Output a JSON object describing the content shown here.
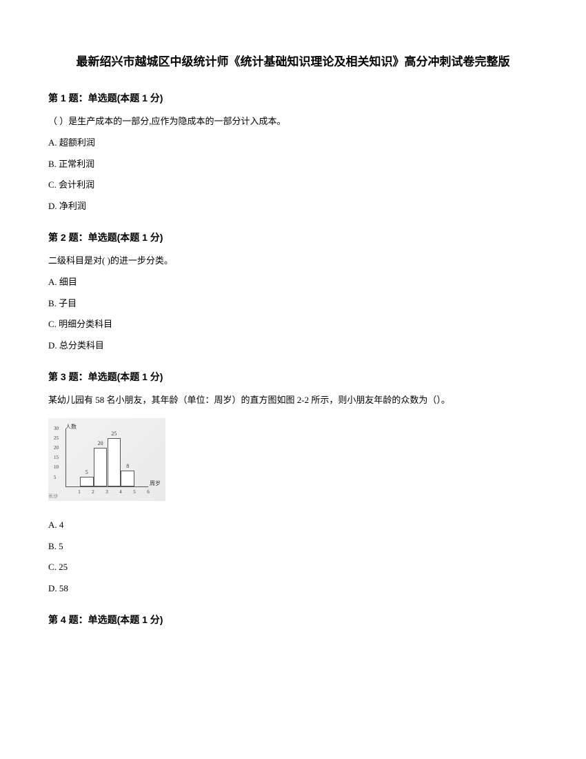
{
  "title": "最新绍兴市越城区中级统计师《统计基础知识理论及相关知识》高分冲刺试卷完整版",
  "questions": [
    {
      "header": "第 1 题：单选题(本题 1 分)",
      "text": "（ ）是生产成本的一部分,应作为隐成本的一部分计入成本。",
      "options": [
        "A. 超额利润",
        "B. 正常利润",
        "C. 会计利润",
        "D. 净利润"
      ]
    },
    {
      "header": "第 2 题：单选题(本题 1 分)",
      "text": "二级科目是对( )的进一步分类。",
      "options": [
        "A. 细目",
        "B. 子目",
        "C. 明细分类科目",
        "D. 总分类科目"
      ]
    },
    {
      "header": "第 3 题：单选题(本题 1 分)",
      "text": "某幼儿园有 58 名小朋友，其年龄（单位：周岁）的直方图如图 2-2 所示，则小朋友年龄的众数为（）。",
      "options": [
        "A. 4",
        "B. 5",
        "C. 25",
        "D. 58"
      ]
    },
    {
      "header": "第 4 题：单选题(本题 1 分)",
      "text": "",
      "options": []
    }
  ],
  "histogram": {
    "y_axis_label": "人数",
    "x_axis_label": "周岁",
    "y_ticks": [
      "5",
      "10",
      "15",
      "20",
      "25",
      "30"
    ],
    "y_max": 30,
    "x_ticks": [
      "1",
      "2",
      "3",
      "4",
      "5",
      "6"
    ],
    "bars": [
      {
        "value": 5,
        "label": "5",
        "x_start": 1
      },
      {
        "value": 20,
        "label": "20",
        "x_start": 2
      },
      {
        "value": 25,
        "label": "25",
        "x_start": 3
      },
      {
        "value": 8,
        "label": "8",
        "x_start": 4
      }
    ],
    "bar_color": "#ffffff",
    "bar_border": "#555555",
    "axis_color": "#555555",
    "background": "#f0f0f0",
    "watermark": "长沙"
  }
}
